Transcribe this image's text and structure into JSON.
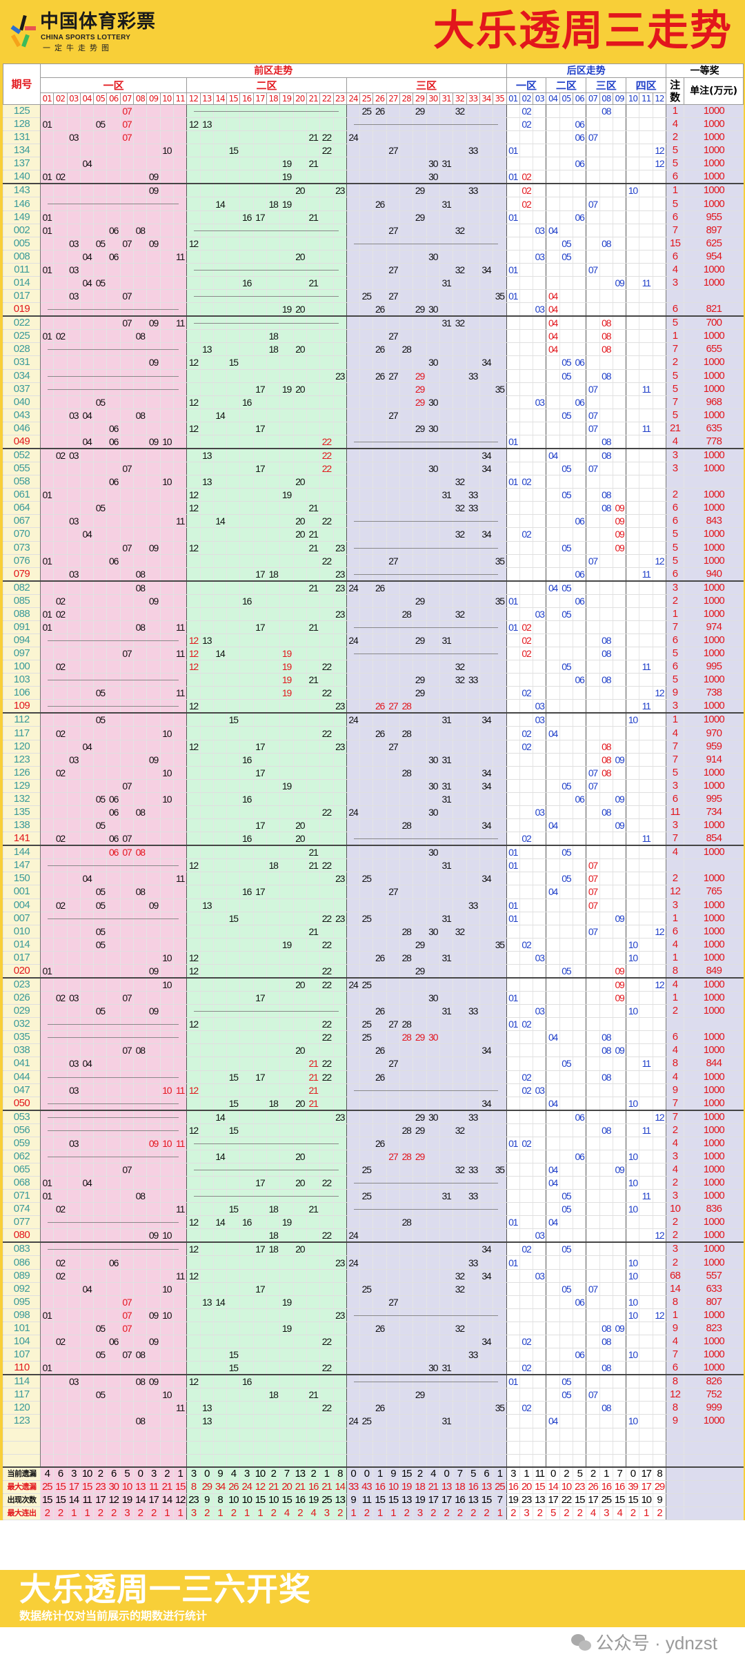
{
  "header": {
    "logo_cn": "中国体育彩票",
    "logo_en": "CHINA SPORTS LOTTERY",
    "logo_sub": "一定牛走势图",
    "title": "大乐透周三走势"
  },
  "table_header": {
    "issue": "期号",
    "front": "前区走势",
    "back": "后区走势",
    "first_prize": "一等奖",
    "front_zones": [
      "一区",
      "二区",
      "三区"
    ],
    "back_zones": [
      "一区",
      "二区",
      "三区",
      "四区"
    ],
    "count": "注数",
    "prize": "单注(万元)"
  },
  "blocks": [
    [
      {
        "issue": "125",
        "front": "07 25 26 29 32",
        "back": "02 08",
        "count": "1",
        "prize": "1000"
      },
      {
        "issue": "128",
        "front": "01 05 07 12 13",
        "back": "02 06",
        "count": "4",
        "prize": "1000"
      },
      {
        "issue": "131",
        "front": "03 07 21 22 24",
        "back": "06 07",
        "count": "2",
        "prize": "1000"
      },
      {
        "issue": "134",
        "front": "10 15 22 27 33",
        "back": "01 12",
        "count": "5",
        "prize": "1000"
      },
      {
        "issue": "137",
        "front": "04 19 21 30 31",
        "back": "06 12",
        "count": "5",
        "prize": "1000"
      },
      {
        "issue": "140",
        "front": "01 02 09 19 30",
        "back": "01 02",
        "count": "6",
        "prize": "1000"
      }
    ],
    [
      {
        "issue": "143",
        "front": "09 20 23 29 33",
        "back": "02 10",
        "count": "1",
        "prize": "1000"
      },
      {
        "issue": "146",
        "front": "14 18 19 26 31",
        "back": "02 07",
        "count": "5",
        "prize": "1000"
      },
      {
        "issue": "149",
        "front": "01 16 17 21 29",
        "back": "01 06",
        "count": "6",
        "prize": "955"
      },
      {
        "issue": "002",
        "front": "01 06 08 27 32",
        "back": "03 04",
        "count": "7",
        "prize": "897"
      },
      {
        "issue": "005",
        "front": "03 05 07 09 12",
        "back": "05 08",
        "count": "15",
        "prize": "625"
      },
      {
        "issue": "008",
        "front": "04 06 11 20 30",
        "back": "03 05",
        "count": "6",
        "prize": "954"
      },
      {
        "issue": "011",
        "front": "01 03 27 32 34",
        "back": "01 07",
        "count": "4",
        "prize": "1000"
      },
      {
        "issue": "014",
        "front": "04 05 16 21 31",
        "back": "09 11",
        "count": "3",
        "prize": "1000"
      },
      {
        "issue": "017",
        "front": "03 07 25 27 35",
        "back": "01 04",
        "count": "",
        "prize": ""
      },
      {
        "issue": "019",
        "front": "19 20 26 29 30",
        "back": "03 04",
        "count": "6",
        "prize": "821"
      }
    ],
    [
      {
        "issue": "022",
        "front": "07 09 11 31 32",
        "back": "04 08",
        "count": "5",
        "prize": "700"
      },
      {
        "issue": "025",
        "front": "01 02 08 18 27",
        "back": "04 08",
        "count": "1",
        "prize": "1000"
      },
      {
        "issue": "028",
        "front": "13 18 20 26 28",
        "back": "04 08",
        "count": "7",
        "prize": "655"
      },
      {
        "issue": "031",
        "front": "09 12 15 30 34",
        "back": "05 06",
        "count": "2",
        "prize": "1000"
      },
      {
        "issue": "034",
        "front": "23 26 27 29 33",
        "back": "05 08",
        "count": "5",
        "prize": "1000"
      },
      {
        "issue": "037",
        "front": "17 19 20 29 35",
        "back": "07 11",
        "count": "5",
        "prize": "1000"
      },
      {
        "issue": "040",
        "front": "05 12 16 29 30",
        "back": "03 06",
        "count": "7",
        "prize": "968"
      },
      {
        "issue": "043",
        "front": "03 04 08 14 27",
        "back": "05 07",
        "count": "5",
        "prize": "1000"
      },
      {
        "issue": "046",
        "front": "06 12 17 29 30",
        "back": "07 11",
        "count": "21",
        "prize": "635"
      },
      {
        "issue": "049",
        "front": "04 06 09 10 22",
        "back": "01 08",
        "count": "4",
        "prize": "778"
      }
    ],
    [
      {
        "issue": "052",
        "front": "02 03 13 22 34",
        "back": "04 08",
        "count": "3",
        "prize": "1000"
      },
      {
        "issue": "055",
        "front": "07 17 22 30 34",
        "back": "05 07",
        "count": "3",
        "prize": "1000"
      },
      {
        "issue": "058",
        "front": "06 10 13 20 32",
        "back": "01 02",
        "count": "",
        "prize": ""
      },
      {
        "issue": "061",
        "front": "01 12 19 31 33",
        "back": "05 08",
        "count": "2",
        "prize": "1000"
      },
      {
        "issue": "064",
        "front": "05 12 21 32 33",
        "back": "08 09",
        "count": "6",
        "prize": "1000"
      },
      {
        "issue": "067",
        "front": "03 11 14 20 22",
        "back": "06 09",
        "count": "6",
        "prize": "843"
      },
      {
        "issue": "070",
        "front": "04 20 21 32 34",
        "back": "02 09",
        "count": "5",
        "prize": "1000"
      },
      {
        "issue": "073",
        "front": "07 09 12 21 23",
        "back": "05 09",
        "count": "5",
        "prize": "1000"
      },
      {
        "issue": "076",
        "front": "01 06 22 27 35",
        "back": "07 12",
        "count": "5",
        "prize": "1000"
      },
      {
        "issue": "079",
        "front": "03 08 17 18 23",
        "back": "06 11",
        "count": "6",
        "prize": "940"
      }
    ],
    [
      {
        "issue": "082",
        "front": "08 21 23 24 26",
        "back": "04 05",
        "count": "3",
        "prize": "1000"
      },
      {
        "issue": "085",
        "front": "02 09 16 29 35",
        "back": "01 06",
        "count": "2",
        "prize": "1000"
      },
      {
        "issue": "088",
        "front": "01 02 23 28 32",
        "back": "03 05",
        "count": "1",
        "prize": "1000"
      },
      {
        "issue": "091",
        "front": "01 08 11 17 21",
        "back": "01 02",
        "count": "7",
        "prize": "974"
      },
      {
        "issue": "094",
        "front": "12 13 24 29 31",
        "back": "02 08",
        "count": "6",
        "prize": "1000"
      },
      {
        "issue": "097",
        "front": "07 11 12 14 19",
        "back": "02 08",
        "count": "5",
        "prize": "1000"
      },
      {
        "issue": "100",
        "front": "02 12 19 22 32",
        "back": "05 11",
        "count": "6",
        "prize": "995"
      },
      {
        "issue": "103",
        "front": "19 21 29 32 33",
        "back": "06 08",
        "count": "5",
        "prize": "1000"
      },
      {
        "issue": "106",
        "front": "05 11 19 22 29",
        "back": "02 12",
        "count": "9",
        "prize": "738"
      },
      {
        "issue": "109",
        "front": "12 23 26 27 28",
        "back": "03 11",
        "count": "3",
        "prize": "1000"
      }
    ],
    [
      {
        "issue": "112",
        "front": "05 15 24 31 34",
        "back": "03 10",
        "count": "1",
        "prize": "1000"
      },
      {
        "issue": "117",
        "front": "02 10 22 26 28",
        "back": "02 04",
        "count": "4",
        "prize": "970"
      },
      {
        "issue": "120",
        "front": "04 12 17 23 27",
        "back": "02 08",
        "count": "7",
        "prize": "959"
      },
      {
        "issue": "123",
        "front": "03 09 16 30 31",
        "back": "08 09",
        "count": "7",
        "prize": "914"
      },
      {
        "issue": "126",
        "front": "02 10 17 28 34",
        "back": "07 08",
        "count": "5",
        "prize": "1000"
      },
      {
        "issue": "129",
        "front": "07 19 30 31 34",
        "back": "05 07",
        "count": "3",
        "prize": "1000"
      },
      {
        "issue": "132",
        "front": "05 06 10 16 31",
        "back": "06 09",
        "count": "6",
        "prize": "995"
      },
      {
        "issue": "135",
        "front": "06 08 22 24 30",
        "back": "03 08",
        "count": "11",
        "prize": "734"
      },
      {
        "issue": "138",
        "front": "05 17 20 28 34",
        "back": "04 09",
        "count": "3",
        "prize": "1000"
      },
      {
        "issue": "141",
        "front": "02 06 07 16 20",
        "back": "02 11",
        "count": "7",
        "prize": "854"
      }
    ],
    [
      {
        "issue": "144",
        "front": "06 07 08 21 30",
        "back": "01 05",
        "count": "4",
        "prize": "1000"
      },
      {
        "issue": "147",
        "front": "12 18 21 22 31",
        "back": "01 07",
        "count": "",
        "prize": ""
      },
      {
        "issue": "150",
        "front": "04 11 23 25 34",
        "back": "05 07",
        "count": "2",
        "prize": "1000"
      },
      {
        "issue": "001",
        "front": "05 08 16 17 27",
        "back": "04 07",
        "count": "12",
        "prize": "765"
      },
      {
        "issue": "004",
        "front": "02 05 09 13 33",
        "back": "01 07",
        "count": "3",
        "prize": "1000"
      },
      {
        "issue": "007",
        "front": "15 22 23 25 31",
        "back": "01 09",
        "count": "1",
        "prize": "1000"
      },
      {
        "issue": "010",
        "front": "05 21 28 30 32",
        "back": "07 12",
        "count": "6",
        "prize": "1000"
      },
      {
        "issue": "014",
        "front": "05 19 22 29 35",
        "back": "02 10",
        "count": "4",
        "prize": "1000"
      },
      {
        "issue": "017",
        "front": "10 12 26 28 31",
        "back": "03 10",
        "count": "1",
        "prize": "1000"
      },
      {
        "issue": "020",
        "front": "01 09 12 22 29",
        "back": "05 09",
        "count": "8",
        "prize": "849"
      }
    ],
    [
      {
        "issue": "023",
        "front": "10 20 22 24 25",
        "back": "09 12",
        "count": "4",
        "prize": "1000"
      },
      {
        "issue": "026",
        "front": "02 03 07 17 30",
        "back": "01 09",
        "count": "1",
        "prize": "1000"
      },
      {
        "issue": "029",
        "front": "05 09 26 31 33",
        "back": "03 10",
        "count": "2",
        "prize": "1000"
      },
      {
        "issue": "032",
        "front": "12 22 25 27 28",
        "back": "01 02",
        "count": "",
        "prize": ""
      },
      {
        "issue": "035",
        "front": "22 25 28 29 30",
        "back": "04 08",
        "count": "6",
        "prize": "1000"
      },
      {
        "issue": "038",
        "front": "07 08 20 26 34",
        "back": "08 09",
        "count": "4",
        "prize": "1000"
      },
      {
        "issue": "041",
        "front": "03 04 21 22 27",
        "back": "05 11",
        "count": "8",
        "prize": "844"
      },
      {
        "issue": "044",
        "front": "15 17 21 22 26",
        "back": "02 08",
        "count": "4",
        "prize": "1000"
      },
      {
        "issue": "047",
        "front": "03 10 11 12 21",
        "back": "02 03",
        "count": "9",
        "prize": "1000"
      },
      {
        "issue": "050",
        "front": "15 18 20 21 34",
        "back": "04 10",
        "count": "7",
        "prize": "1000"
      }
    ],
    [
      {
        "issue": "053",
        "front": "14 23 29 30 33",
        "back": "06 12",
        "count": "7",
        "prize": "1000"
      },
      {
        "issue": "056",
        "front": "12 15 28 29 32",
        "back": "08 11",
        "count": "2",
        "prize": "1000"
      },
      {
        "issue": "059",
        "front": "03 09 10 11 26",
        "back": "01 02",
        "count": "4",
        "prize": "1000"
      },
      {
        "issue": "062",
        "front": "14 20 27 28 29",
        "back": "06 10",
        "count": "3",
        "prize": "1000"
      },
      {
        "issue": "065",
        "front": "07 25 32 33 35",
        "back": "04 09",
        "count": "4",
        "prize": "1000"
      },
      {
        "issue": "068",
        "front": "01 04 17 20 22",
        "back": "04 10",
        "count": "2",
        "prize": "1000"
      },
      {
        "issue": "071",
        "front": "01 08 25 31 33",
        "back": "05 11",
        "count": "3",
        "prize": "1000"
      },
      {
        "issue": "074",
        "front": "02 11 15 18 21",
        "back": "05 10",
        "count": "10",
        "prize": "836"
      },
      {
        "issue": "077",
        "front": "12 14 16 19 28",
        "back": "01 04",
        "count": "2",
        "prize": "1000"
      },
      {
        "issue": "080",
        "front": "09 10 18 22 24",
        "back": "03 12",
        "count": "2",
        "prize": "1000"
      }
    ],
    [
      {
        "issue": "083",
        "front": "12 17 18 20 34",
        "back": "02 05",
        "count": "3",
        "prize": "1000"
      },
      {
        "issue": "086",
        "front": "02 06 23 24 33",
        "back": "01 10",
        "count": "2",
        "prize": "1000"
      },
      {
        "issue": "089",
        "front": "02 11 12 32 34",
        "back": "03 10",
        "count": "68",
        "prize": "557"
      },
      {
        "issue": "092",
        "front": "04 10 17 25 32",
        "back": "05 07",
        "count": "14",
        "prize": "633"
      },
      {
        "issue": "095",
        "front": "07 13 14 19 27",
        "back": "06 10",
        "count": "8",
        "prize": "807"
      },
      {
        "issue": "098",
        "front": "01 07 09 10 23",
        "back": "10 12",
        "count": "1",
        "prize": "1000"
      },
      {
        "issue": "101",
        "front": "05 07 19 26 32",
        "back": "08 09",
        "count": "9",
        "prize": "823"
      },
      {
        "issue": "104",
        "front": "02 06 09 22 34",
        "back": "02 08",
        "count": "4",
        "prize": "1000"
      },
      {
        "issue": "107",
        "front": "05 07 08 15 33",
        "back": "06 10",
        "count": "7",
        "prize": "1000"
      },
      {
        "issue": "110",
        "front": "01 15 22 30 31",
        "back": "02 08",
        "count": "6",
        "prize": "1000"
      }
    ],
    [
      {
        "issue": "114",
        "front": "03 08 09 12 16",
        "back": "01 05",
        "count": "8",
        "prize": "826"
      },
      {
        "issue": "117",
        "front": "05 10 18 21 29",
        "back": "05 07",
        "count": "12",
        "prize": "752"
      },
      {
        "issue": "120",
        "front": "11 13 22 26 35",
        "back": "02 08",
        "count": "8",
        "prize": "999"
      },
      {
        "issue": "123",
        "front": "08 13 24 25 31",
        "back": "04 10",
        "count": "9",
        "prize": "1000"
      }
    ]
  ],
  "stats": [
    {
      "label": "当前遗漏",
      "red": false,
      "values": [
        4,
        6,
        3,
        10,
        2,
        6,
        5,
        0,
        3,
        2,
        1,
        3,
        0,
        9,
        4,
        3,
        10,
        2,
        7,
        13,
        2,
        1,
        8,
        0,
        0,
        1,
        9,
        15,
        2,
        4,
        0,
        7,
        5,
        6,
        1,
        3,
        1,
        11,
        0,
        2,
        5,
        2,
        1,
        7,
        0,
        17,
        8
      ]
    },
    {
      "label": "最大遗漏",
      "red": true,
      "values": [
        25,
        15,
        17,
        15,
        23,
        30,
        10,
        13,
        11,
        21,
        15,
        8,
        29,
        34,
        26,
        24,
        12,
        21,
        20,
        21,
        16,
        21,
        14,
        33,
        43,
        16,
        10,
        19,
        18,
        21,
        13,
        18,
        16,
        13,
        25,
        16,
        20,
        15,
        14,
        10,
        23,
        26,
        16,
        16,
        39,
        17,
        29
      ]
    },
    {
      "label": "出现次数",
      "red": false,
      "values": [
        15,
        15,
        14,
        11,
        17,
        12,
        19,
        14,
        17,
        14,
        12,
        23,
        9,
        8,
        10,
        10,
        15,
        10,
        15,
        16,
        19,
        25,
        13,
        9,
        11,
        15,
        15,
        13,
        19,
        17,
        17,
        16,
        13,
        15,
        7,
        19,
        23,
        13,
        17,
        22,
        15,
        17,
        25,
        15,
        15,
        10,
        9
      ]
    },
    {
      "label": "最大连出",
      "red": true,
      "values": [
        2,
        2,
        1,
        1,
        2,
        2,
        3,
        2,
        2,
        1,
        1,
        3,
        2,
        1,
        2,
        1,
        1,
        2,
        4,
        2,
        4,
        3,
        2,
        1,
        2,
        1,
        1,
        2,
        3,
        2,
        2,
        2,
        2,
        2,
        1,
        2,
        3,
        2,
        5,
        2,
        2,
        4,
        3,
        4,
        2,
        1,
        2
      ]
    }
  ],
  "footer": {
    "slogan": "大乐透周一三六开奖",
    "note": "数据统计仅对当前展示的期数进行统计",
    "watermark": "公众号 · ydnzst"
  },
  "colors": {
    "accent": "#e2161c",
    "back_blue": "#1e3ec8",
    "banner": "#f8cf38"
  }
}
